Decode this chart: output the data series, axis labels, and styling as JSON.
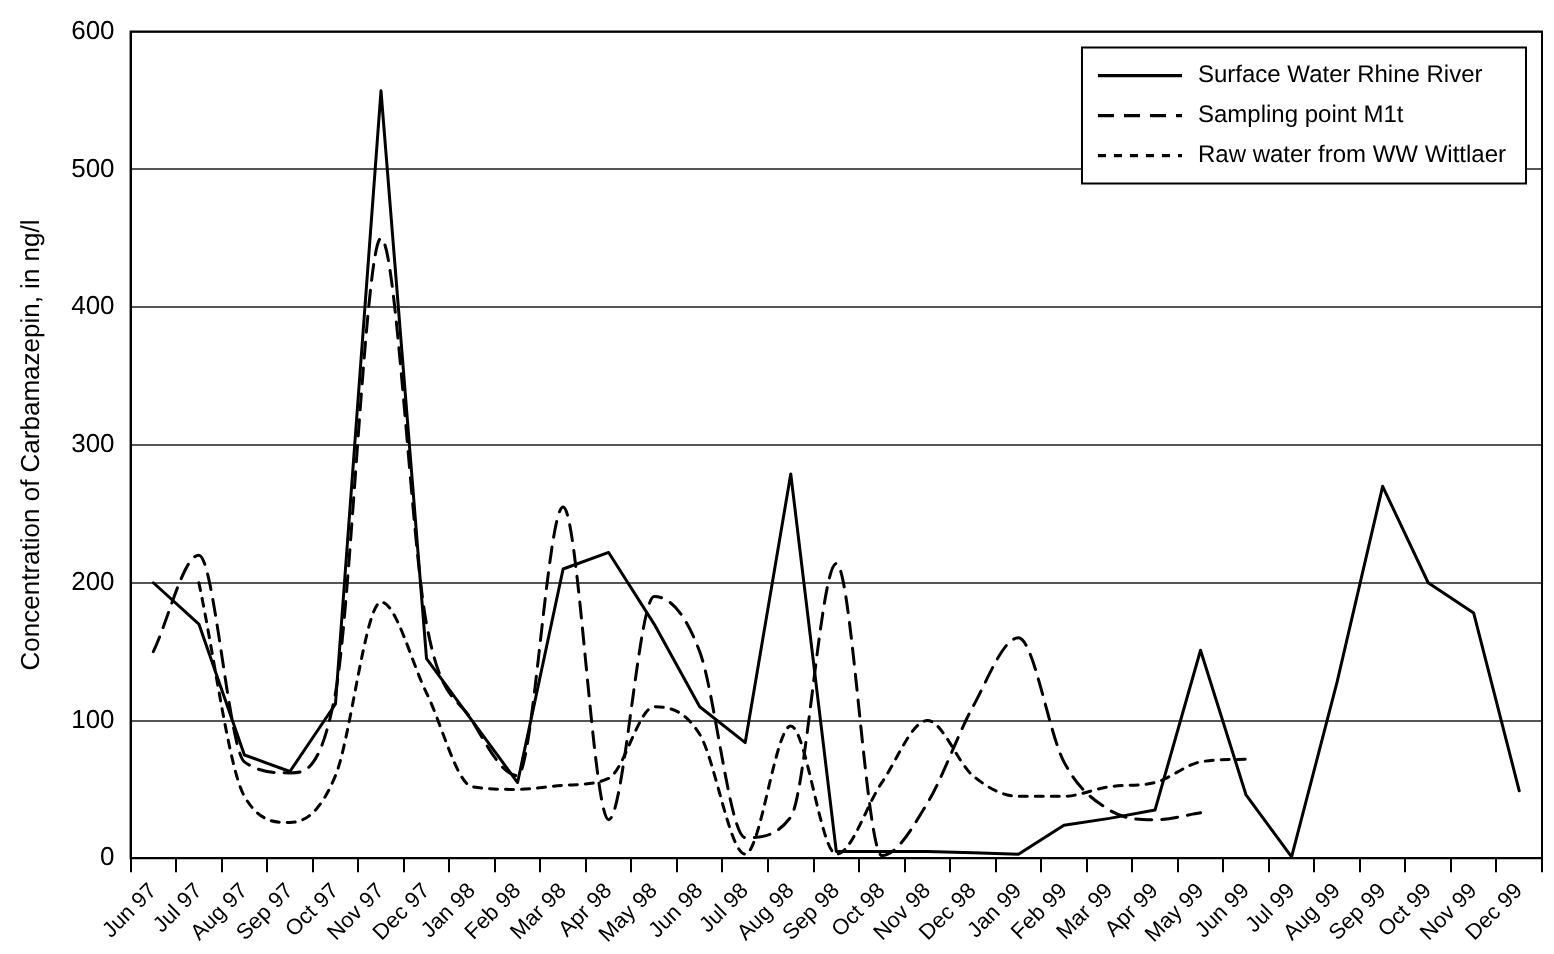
{
  "chart_data": {
    "type": "line",
    "ylabel": "Concentration of Carbamazepin, in ng/l",
    "categories": [
      "Jun 97",
      "Jul 97",
      "Aug 97",
      "Sep 97",
      "Oct 97",
      "Nov 97",
      "Dec 97",
      "Jan 98",
      "Feb 98",
      "Mar 98",
      "Apr 98",
      "May 98",
      "Jun 98",
      "Jul 98",
      "Aug 98",
      "Sep 98",
      "Oct 98",
      "Nov 98",
      "Dec 98",
      "Jan 99",
      "Feb 99",
      "Mar 99",
      "Apr 99",
      "May 99",
      "Jun 99",
      "Jul 99",
      "Aug 99",
      "Sep 99",
      "Oct 99",
      "Nov 99",
      "Dec 99"
    ],
    "series": [
      {
        "name": "Surface Water Rhine River",
        "color": "#000000",
        "line_style": "solid",
        "values": [
          200,
          170,
          75,
          63,
          112,
          557,
          145,
          100,
          55,
          210,
          222,
          170,
          110,
          84,
          279,
          5,
          5,
          5,
          4,
          3,
          24,
          29,
          35,
          151,
          46,
          1,
          128,
          270,
          200,
          178,
          49
        ]
      },
      {
        "name": "Sampling point M1t",
        "color": "#000000",
        "line_style": "dashed",
        "values": [
          150,
          220,
          70,
          62,
          120,
          450,
          170,
          100,
          60,
          255,
          28,
          190,
          150,
          15,
          30,
          214,
          2,
          40,
          110,
          160,
          70,
          35,
          28,
          33,
          null,
          null,
          null,
          null,
          null,
          null,
          null
        ]
      },
      {
        "name": "Raw water from WW Wittlaer",
        "color": "#000000",
        "line_style": "dotted",
        "values": [
          null,
          200,
          45,
          26,
          60,
          186,
          120,
          52,
          50,
          53,
          58,
          110,
          90,
          3,
          96,
          3,
          55,
          100,
          60,
          45,
          45,
          52,
          55,
          70,
          72,
          null,
          null,
          null,
          null,
          null,
          null
        ]
      }
    ],
    "ylim": [
      0,
      600
    ],
    "yticks": [
      0,
      100,
      200,
      300,
      400,
      500,
      600
    ],
    "grid": "y",
    "legend": "top right",
    "marker": "none"
  }
}
